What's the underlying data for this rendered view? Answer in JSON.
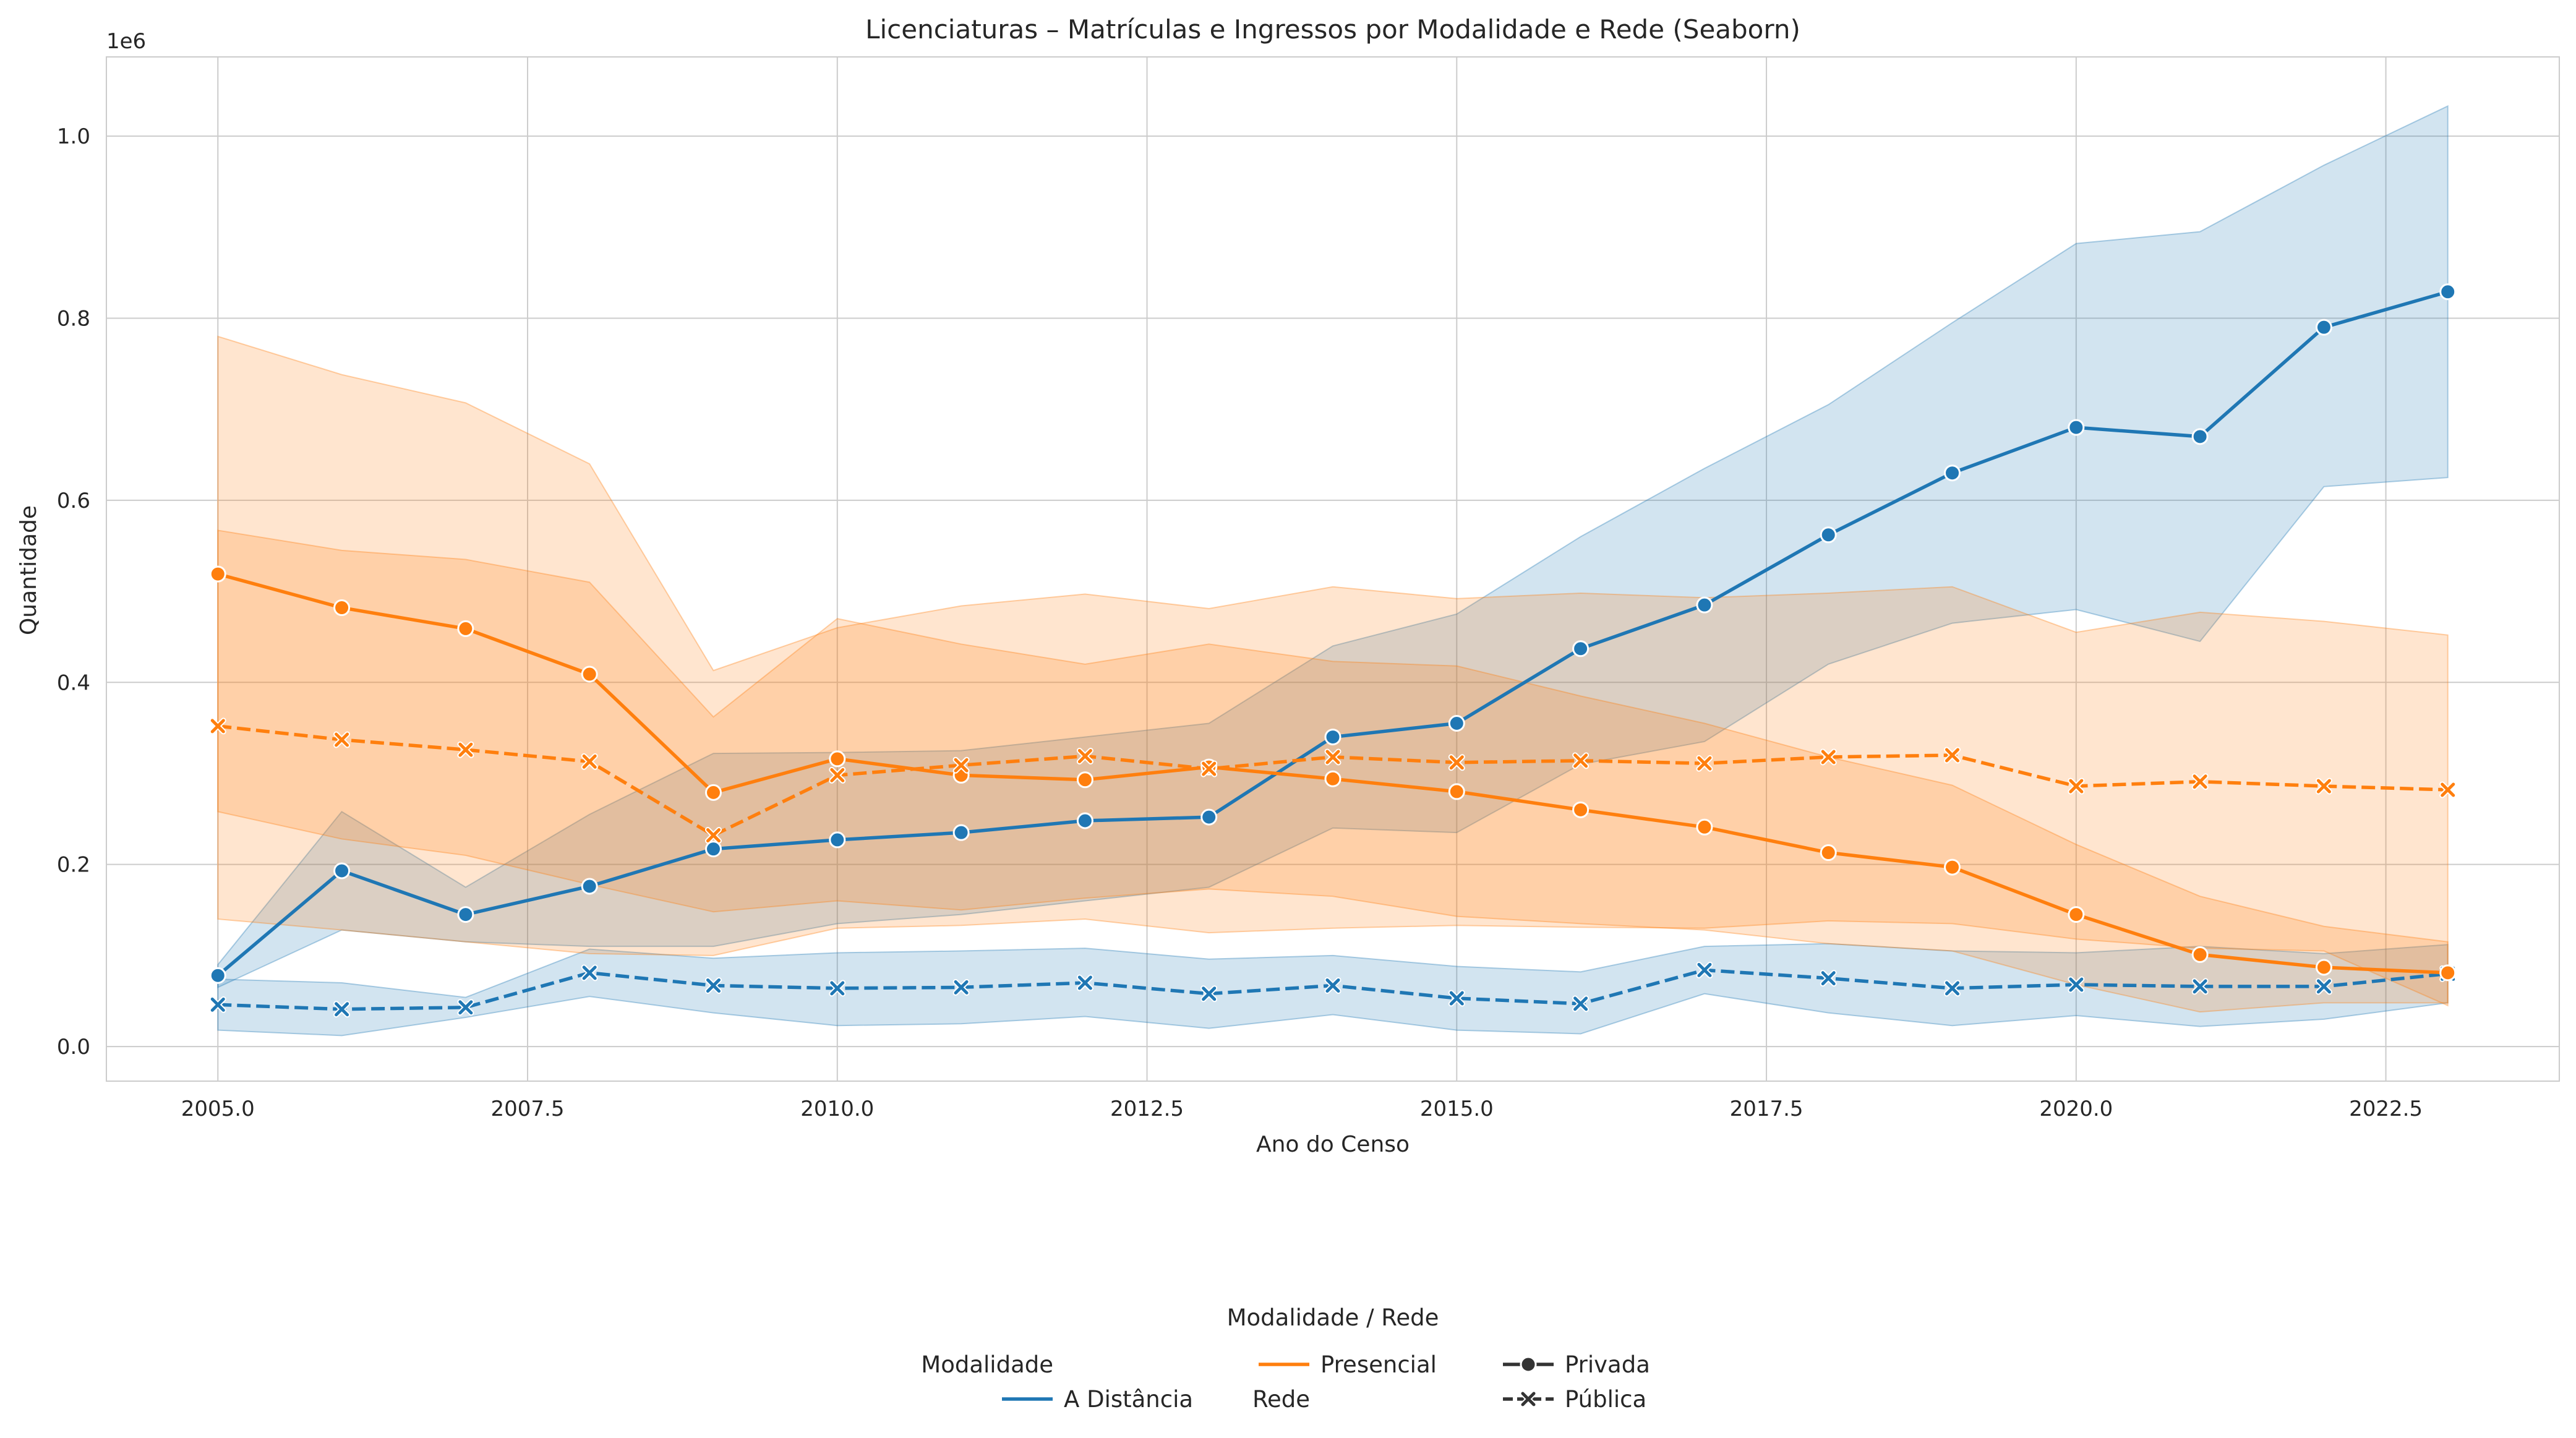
{
  "chart_data": {
    "type": "line",
    "title": "Licenciaturas – Matrículas e Ingressos por Modalidade e Rede (Seaborn)",
    "xlabel": "Ano do Censo",
    "ylabel": "Quantidade",
    "y_offset_label": "1e6",
    "xlim": [
      2004.1,
      2023.9
    ],
    "ylim": [
      -0.038,
      1.087
    ],
    "x_ticks": [
      2005.0,
      2007.5,
      2010.0,
      2012.5,
      2015.0,
      2017.5,
      2020.0,
      2022.5
    ],
    "x_tick_labels": [
      "2005.0",
      "2007.5",
      "2010.0",
      "2012.5",
      "2015.0",
      "2017.5",
      "2020.0",
      "2022.5"
    ],
    "y_ticks": [
      0.0,
      0.2,
      0.4,
      0.6,
      0.8,
      1.0
    ],
    "y_tick_labels": [
      "0.0",
      "0.2",
      "0.4",
      "0.6",
      "0.8",
      "1.0"
    ],
    "y_unit_note": "values in 1e6",
    "grid": true,
    "x": [
      2005,
      2006,
      2007,
      2008,
      2009,
      2010,
      2011,
      2012,
      2013,
      2014,
      2015,
      2016,
      2017,
      2018,
      2019,
      2020,
      2021,
      2022,
      2023
    ],
    "series": [
      {
        "modalidade": "A Distância",
        "rede": "Privada",
        "color": "#1f77b4",
        "dash": "solid",
        "marker": "circle",
        "values": [
          0.078,
          0.193,
          0.145,
          0.176,
          0.217,
          0.227,
          0.235,
          0.248,
          0.252,
          0.34,
          0.355,
          0.437,
          0.485,
          0.562,
          0.63,
          0.68,
          0.67,
          0.79,
          0.829
        ],
        "ci_low": [
          0.065,
          0.128,
          0.115,
          0.11,
          0.11,
          0.135,
          0.145,
          0.16,
          0.175,
          0.24,
          0.235,
          0.31,
          0.335,
          0.42,
          0.465,
          0.48,
          0.445,
          0.615,
          0.625
        ],
        "ci_high": [
          0.09,
          0.258,
          0.175,
          0.255,
          0.322,
          0.323,
          0.325,
          0.34,
          0.355,
          0.44,
          0.475,
          0.56,
          0.635,
          0.705,
          0.795,
          0.882,
          0.895,
          0.968,
          1.033
        ]
      },
      {
        "modalidade": "A Distância",
        "rede": "Pública",
        "color": "#1f77b4",
        "dash": "dashed",
        "marker": "x",
        "values": [
          0.046,
          0.041,
          0.043,
          0.081,
          0.067,
          0.064,
          0.065,
          0.07,
          0.058,
          0.067,
          0.053,
          0.047,
          0.084,
          0.075,
          0.064,
          0.068,
          0.066,
          0.066,
          0.08
        ],
        "ci_low": [
          0.018,
          0.012,
          0.032,
          0.055,
          0.037,
          0.023,
          0.025,
          0.033,
          0.02,
          0.035,
          0.018,
          0.014,
          0.058,
          0.037,
          0.023,
          0.034,
          0.022,
          0.03,
          0.048
        ],
        "ci_high": [
          0.074,
          0.07,
          0.054,
          0.107,
          0.097,
          0.103,
          0.105,
          0.108,
          0.096,
          0.1,
          0.088,
          0.082,
          0.11,
          0.113,
          0.105,
          0.103,
          0.11,
          0.102,
          0.112
        ]
      },
      {
        "modalidade": "Presencial",
        "rede": "Privada",
        "color": "#ff7f0e",
        "dash": "solid",
        "marker": "circle",
        "values": [
          0.519,
          0.482,
          0.459,
          0.409,
          0.279,
          0.316,
          0.298,
          0.293,
          0.307,
          0.294,
          0.28,
          0.26,
          0.241,
          0.213,
          0.197,
          0.145,
          0.101,
          0.087,
          0.081
        ],
        "ci_low": [
          0.258,
          0.228,
          0.21,
          0.178,
          0.148,
          0.16,
          0.15,
          0.163,
          0.173,
          0.165,
          0.143,
          0.135,
          0.128,
          0.113,
          0.105,
          0.068,
          0.038,
          0.048,
          0.048
        ],
        "ci_high": [
          0.567,
          0.545,
          0.535,
          0.51,
          0.362,
          0.47,
          0.442,
          0.42,
          0.442,
          0.423,
          0.418,
          0.385,
          0.355,
          0.318,
          0.287,
          0.222,
          0.165,
          0.132,
          0.115
        ]
      },
      {
        "modalidade": "Presencial",
        "rede": "Pública",
        "color": "#ff7f0e",
        "dash": "dashed",
        "marker": "x",
        "values": [
          0.352,
          0.337,
          0.326,
          0.313,
          0.232,
          0.298,
          0.309,
          0.319,
          0.305,
          0.318,
          0.312,
          0.314,
          0.311,
          0.318,
          0.32,
          0.286,
          0.291,
          0.286,
          0.282
        ],
        "ci_low": [
          0.14,
          0.128,
          0.115,
          0.102,
          0.1,
          0.13,
          0.133,
          0.14,
          0.125,
          0.13,
          0.133,
          0.131,
          0.13,
          0.138,
          0.135,
          0.118,
          0.108,
          0.105,
          0.045
        ],
        "ci_high": [
          0.78,
          0.738,
          0.707,
          0.64,
          0.413,
          0.46,
          0.484,
          0.497,
          0.481,
          0.505,
          0.492,
          0.498,
          0.493,
          0.498,
          0.505,
          0.455,
          0.477,
          0.467,
          0.452
        ]
      }
    ],
    "legend": {
      "title": "Modalidade / Rede",
      "placement": "bottom-center",
      "entries": [
        {
          "kind": "header",
          "label": "Modalidade"
        },
        {
          "kind": "color",
          "label": "A Distância",
          "color": "#1f77b4"
        },
        {
          "kind": "color",
          "label": "Presencial",
          "color": "#ff7f0e"
        },
        {
          "kind": "header",
          "label": "Rede"
        },
        {
          "kind": "style",
          "label": "Privada",
          "dash": "solid",
          "marker": "circle"
        },
        {
          "kind": "style",
          "label": "Pública",
          "dash": "dashed",
          "marker": "x"
        }
      ]
    }
  }
}
